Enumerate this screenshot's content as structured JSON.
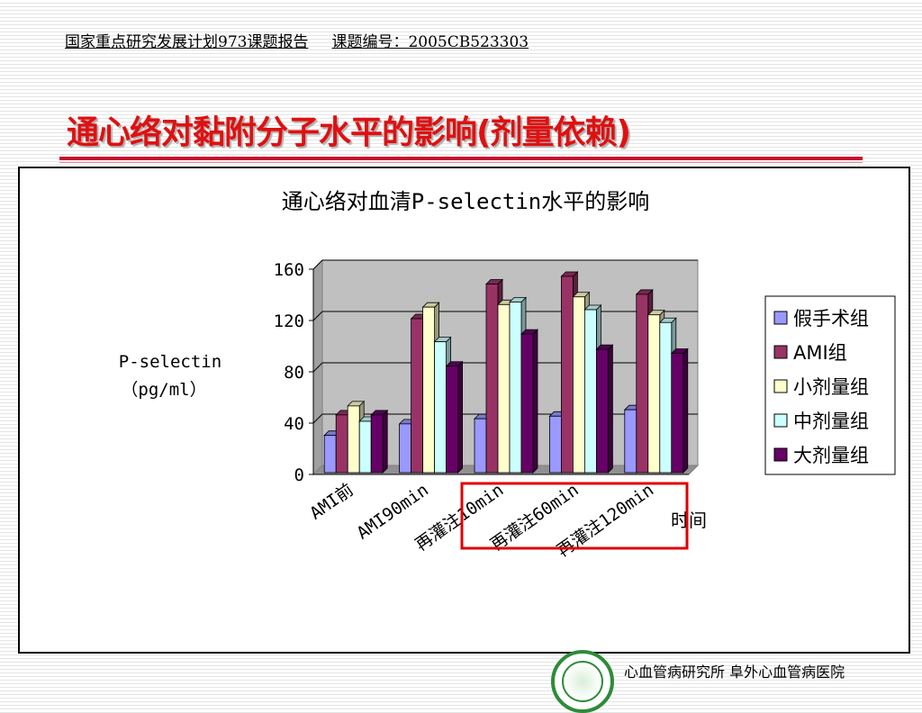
{
  "header": {
    "report": "国家重点研究发展计划973课题报告",
    "project_no": "课题编号：2005CB523303"
  },
  "slide_title": "通心络对黏附分子水平的影响(剂量依赖)",
  "footer": {
    "institution": "心血管病研究所 阜外心血管病医院"
  },
  "colors": {
    "title": "#e01010",
    "highlight_box": "#e00000",
    "plot_bg": "#c0c0c0"
  },
  "chart_data": {
    "type": "bar",
    "title": "通心络对血清P-selectin水平的影响",
    "ylabel_line1": "P-selectin",
    "ylabel_line2": "（pg/ml）",
    "xlabel": "时间",
    "ylim": [
      0,
      160
    ],
    "yticks": [
      "0",
      "40",
      "80",
      "120",
      "160"
    ],
    "grid": true,
    "legend_position": "right",
    "categories": [
      "AMI前",
      "AMI90min",
      "再灌注10min",
      "再灌注60min",
      "再灌注120min"
    ],
    "series": [
      {
        "name": "假手术组",
        "color": "#9999ff",
        "values": [
          29,
          38,
          42,
          44,
          49
        ]
      },
      {
        "name": "AMI组",
        "color": "#993366",
        "values": [
          45,
          120,
          147,
          153,
          139
        ]
      },
      {
        "name": "小剂量组",
        "color": "#ffffcc",
        "values": [
          52,
          129,
          131,
          137,
          123
        ]
      },
      {
        "name": "中剂量组",
        "color": "#ccffff",
        "values": [
          40,
          102,
          133,
          127,
          117
        ]
      },
      {
        "name": "大剂量组",
        "color": "#660066",
        "values": [
          45,
          83,
          108,
          96,
          93
        ]
      }
    ],
    "highlighted_categories": [
      "再灌注60min",
      "再灌注120min"
    ]
  }
}
